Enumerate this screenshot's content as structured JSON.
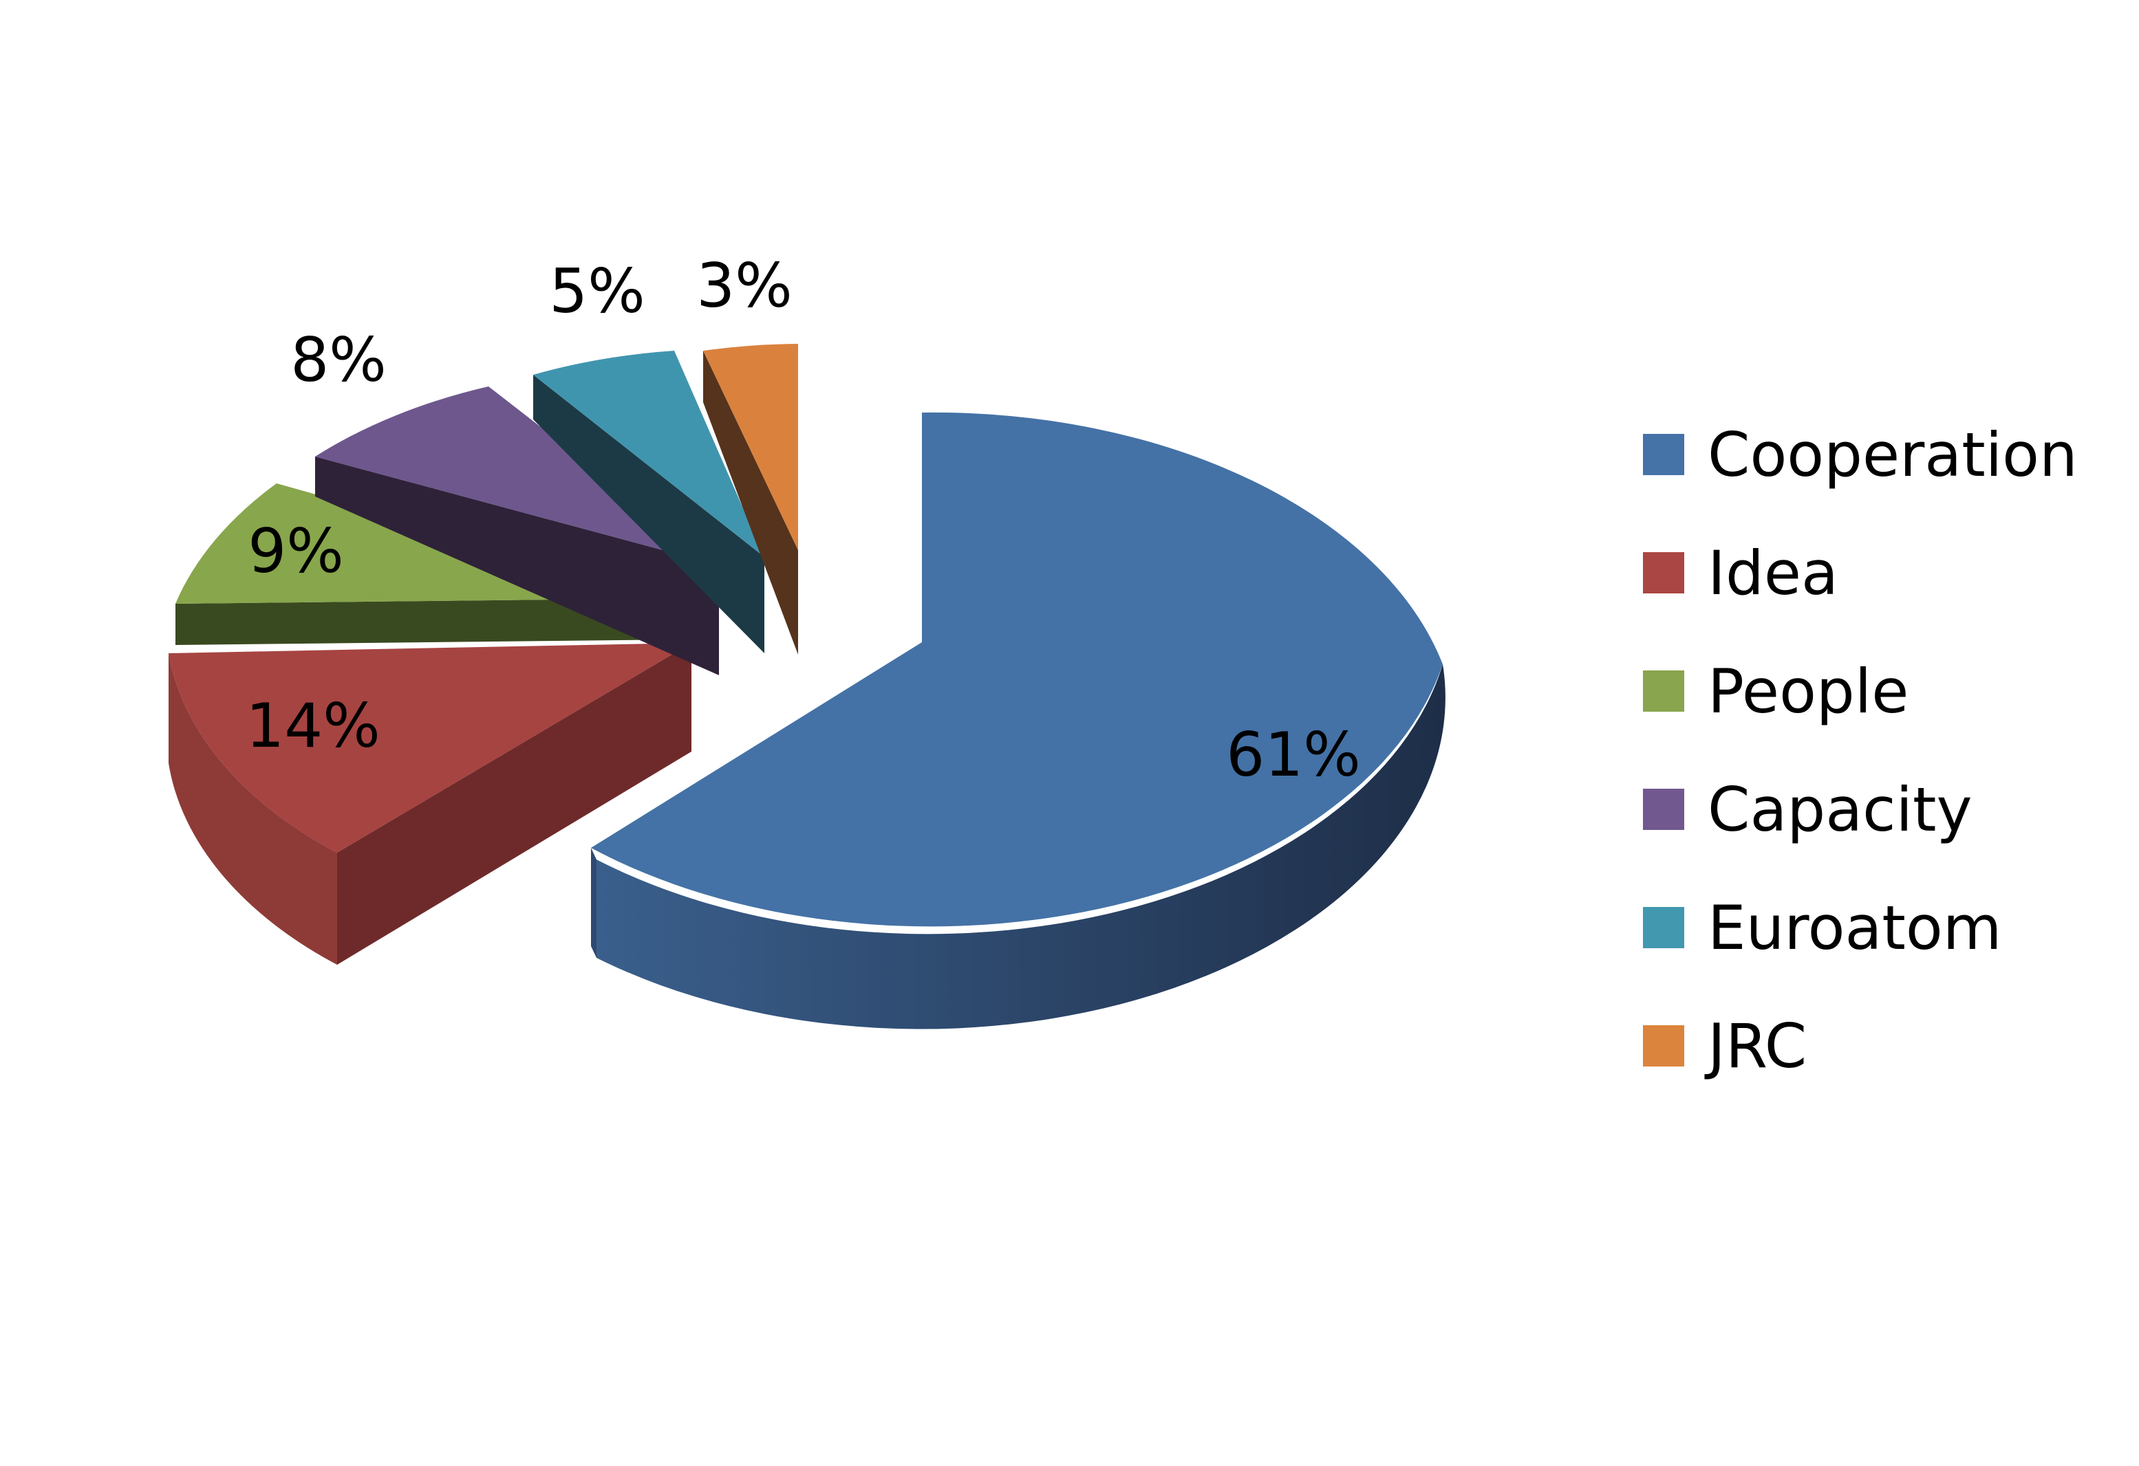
{
  "chart_data": {
    "type": "pie",
    "style": "3d-exploded",
    "title": "",
    "categories": [
      "Cooperation",
      "Idea",
      "People",
      "Capacity",
      "Euroatom",
      "JRC"
    ],
    "values": [
      61,
      14,
      9,
      8,
      5,
      3
    ],
    "labels": [
      "61%",
      "14%",
      "9%",
      "8%",
      "5%",
      "3%"
    ],
    "colors": [
      "#4572A7",
      "#AA4643",
      "#89A54E",
      "#71588F",
      "#4198AF",
      "#DB843D"
    ],
    "legend_position": "right"
  }
}
